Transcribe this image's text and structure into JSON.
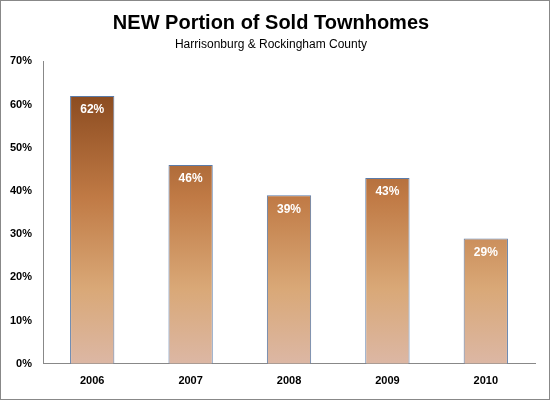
{
  "chart_data": {
    "type": "bar",
    "title": "NEW Portion of Sold Townhomes",
    "subtitle": "Harrisonburg & Rockingham County",
    "categories": [
      "2006",
      "2007",
      "2008",
      "2009",
      "2010"
    ],
    "values": [
      62,
      46,
      39,
      43,
      29
    ],
    "value_labels": [
      "62%",
      "46%",
      "39%",
      "43%",
      "29%"
    ],
    "color": "#7a3c14",
    "ylim": [
      0,
      70
    ],
    "yticks": [
      {
        "value": 0,
        "label": "0%"
      },
      {
        "value": 10,
        "label": "10%"
      },
      {
        "value": 20,
        "label": "20%"
      },
      {
        "value": 30,
        "label": "30%"
      },
      {
        "value": 40,
        "label": "40%"
      },
      {
        "value": 50,
        "label": "50%"
      },
      {
        "value": 60,
        "label": "60%"
      },
      {
        "value": 70,
        "label": "70%"
      }
    ],
    "grid": false,
    "data_labels": true
  }
}
